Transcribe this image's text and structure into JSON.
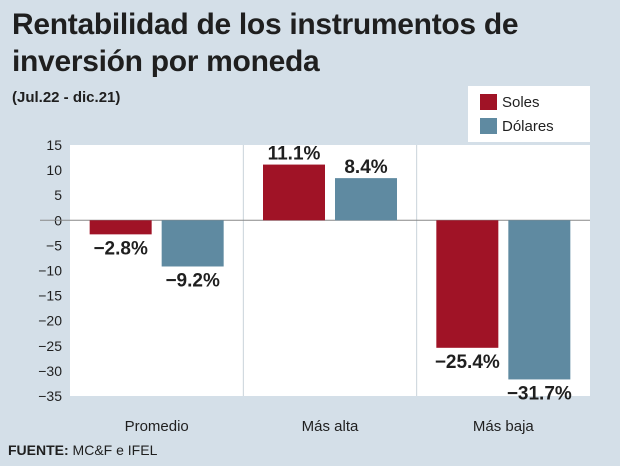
{
  "header": {
    "title": "Rentabilidad de los instrumentos de inversión por moneda",
    "subtitle": "(Jul.22 - dic.21)"
  },
  "footer": {
    "source_label": "FUENTE:",
    "source_text": " MC&F e IFEL"
  },
  "chart_data": {
    "type": "bar",
    "title": "Rentabilidad de los instrumentos de inversión por moneda",
    "subtitle": "(Jul.22 - dic.21)",
    "categories": [
      "Promedio",
      "Más alta",
      "Más baja"
    ],
    "series": [
      {
        "name": "Soles",
        "values": [
          -2.8,
          11.1,
          -25.4
        ],
        "labels": [
          "-2.8%",
          "11.1%",
          "-25.4%"
        ],
        "color": "#a01326"
      },
      {
        "name": "Dólares",
        "values": [
          -9.2,
          8.4,
          -31.7
        ],
        "labels": [
          "-9.2%",
          "8.4%",
          "-31.7%"
        ],
        "color": "#5f8aa1"
      }
    ],
    "yticks": [
      15,
      10,
      5,
      0,
      -5,
      -10,
      -15,
      -20,
      -25,
      -30,
      -35
    ],
    "ytick_labels": [
      "15",
      "10",
      "5",
      "0",
      "−5",
      "−10",
      "−15",
      "−20",
      "−25",
      "−30",
      "−35"
    ],
    "ylim": [
      -35,
      15
    ],
    "legend_position": "top-right",
    "grid": false,
    "plot_background": "#ffffff"
  }
}
